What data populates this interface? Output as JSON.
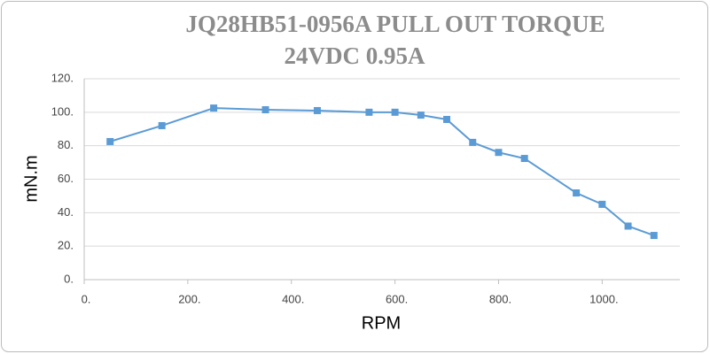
{
  "chart_data": {
    "type": "line",
    "title": [
      "JQ28HB51-0956A PULL OUT TORQUE",
      "24VDC  0.95A"
    ],
    "x_label": "RPM",
    "y_label": "mN.m",
    "x": [
      50,
      150,
      250,
      350,
      450,
      550,
      600,
      650,
      700,
      750,
      800,
      850,
      950,
      1000,
      1050,
      1100
    ],
    "series": [
      {
        "name": "Pull out torque",
        "color": "#5b9bd5",
        "values": [
          82.5,
          92,
          102.5,
          101.5,
          101,
          100,
          100,
          98.3,
          95.7,
          82,
          76,
          72.4,
          51.8,
          45,
          32,
          26.4
        ]
      }
    ],
    "xlim": [
      0,
      1150
    ],
    "ylim": [
      0,
      120
    ],
    "xticks": [
      {
        "value": 0,
        "label": "0."
      },
      {
        "value": 200,
        "label": "200."
      },
      {
        "value": 400,
        "label": "400."
      },
      {
        "value": 600,
        "label": "600."
      },
      {
        "value": 800,
        "label": "800."
      },
      {
        "value": 1000,
        "label": "1000."
      }
    ],
    "yticks": [
      {
        "value": 0,
        "label": "0."
      },
      {
        "value": 20,
        "label": "20."
      },
      {
        "value": 40,
        "label": "40."
      },
      {
        "value": 60,
        "label": "60."
      },
      {
        "value": 80,
        "label": "80."
      },
      {
        "value": 100,
        "label": "100."
      },
      {
        "value": 120,
        "label": "120."
      }
    ],
    "grid": true
  }
}
